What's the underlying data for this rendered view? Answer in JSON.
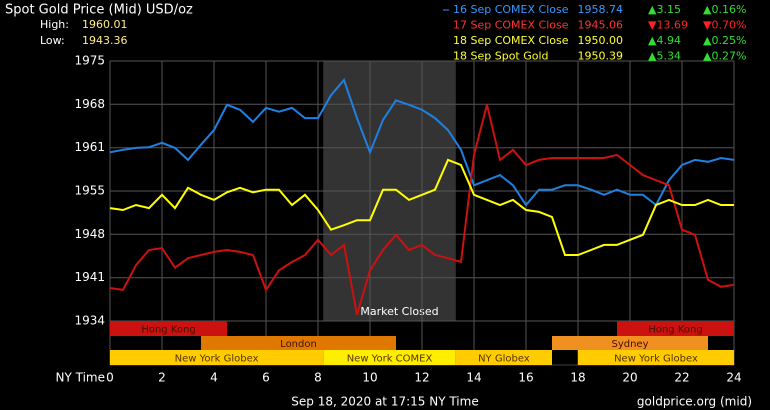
{
  "chart_data": {
    "type": "line",
    "title": "Spot Gold Price (Mid) USD/oz",
    "high_label": "High:",
    "high": "1960.01",
    "low_label": "Low:",
    "low": "1943.36",
    "x_label": "NY Time",
    "footer_date": "Sep 18, 2020 at 17:15 NY Time",
    "footer_source": "goldprice.org (mid)",
    "xlim": [
      0,
      24
    ],
    "xticks": [
      0,
      2,
      4,
      6,
      8,
      10,
      12,
      14,
      16,
      18,
      20,
      22,
      24
    ],
    "ylim": [
      1934,
      1975
    ],
    "yticks": [
      1975,
      {
        "value": 1968.17,
        "label": "1968"
      },
      {
        "value": 1961.33,
        "label": "1961"
      },
      {
        "value": 1954.5,
        "label": "1955"
      },
      {
        "value": 1947.67,
        "label": "1948"
      },
      {
        "value": 1940.83,
        "label": "1941"
      },
      1934
    ],
    "grid": true,
    "x": [
      0,
      0.5,
      1,
      1.5,
      2,
      2.5,
      3,
      3.5,
      4,
      4.5,
      5,
      5.5,
      6,
      6.5,
      7,
      7.5,
      8,
      8.5,
      9,
      9.5,
      10,
      10.5,
      11,
      11.5,
      12,
      12.5,
      13,
      13.5,
      14,
      14.5,
      15,
      15.5,
      16,
      16.5,
      17,
      17.5,
      18,
      18.5,
      19,
      19.5,
      20,
      20.5,
      21,
      21.5,
      22,
      22.5,
      23,
      23.5,
      24
    ],
    "series": [
      {
        "name": "16 Sep COMEX Close",
        "color": "#2080e0",
        "text_color": "#3399ff",
        "price": "1958.74",
        "change": "▲3.15",
        "change_pct": "▲0.16%",
        "up": true,
        "values": [
          1960.6,
          1961.0,
          1961.3,
          1961.4,
          1962.1,
          1961.3,
          1959.4,
          1961.8,
          1964.1,
          1968.1,
          1967.3,
          1965.4,
          1967.6,
          1967.0,
          1967.6,
          1966.0,
          1966.0,
          1969.6,
          1972.0,
          1966.0,
          1960.6,
          1965.7,
          1968.8,
          1968.1,
          1967.3,
          1966.0,
          1964.1,
          1961.0,
          1955.4,
          1956.2,
          1957.0,
          1955.4,
          1952.3,
          1954.7,
          1954.7,
          1955.4,
          1955.4,
          1954.7,
          1953.9,
          1954.7,
          1953.9,
          1953.9,
          1952.3,
          1956.2,
          1958.6,
          1959.4,
          1959.1,
          1959.7,
          1959.4
        ]
      },
      {
        "name": "17 Sep COMEX Close",
        "color": "#cc1111",
        "text_color": "#ff3333",
        "price": "1945.06",
        "change": "▼13.69",
        "change_pct": "▼0.70%",
        "up": false,
        "values": [
          1939.2,
          1938.9,
          1942.8,
          1945.2,
          1945.5,
          1942.4,
          1943.9,
          1944.4,
          1944.9,
          1945.2,
          1944.9,
          1944.4,
          1938.9,
          1942.0,
          1943.3,
          1944.4,
          1946.8,
          1944.4,
          1946.0,
          1935.0,
          1942.0,
          1945.2,
          1947.6,
          1945.2,
          1946.0,
          1944.4,
          1943.9,
          1943.3,
          1960.2,
          1968.1,
          1959.4,
          1961.0,
          1958.6,
          1959.4,
          1959.7,
          1959.7,
          1959.7,
          1959.7,
          1959.7,
          1960.2,
          1958.6,
          1957.0,
          1956.2,
          1955.4,
          1948.4,
          1947.6,
          1940.5,
          1939.4,
          1939.7
        ]
      },
      {
        "name": "18 Sep COMEX Close",
        "color": "#ffff00",
        "text_color": "#ffff33",
        "price": "1950.00",
        "change": "▲4.94",
        "change_pct": "▲0.25%",
        "up": true,
        "values": [
          1951.8,
          1951.5,
          1952.3,
          1951.8,
          1953.9,
          1951.8,
          1955.0,
          1953.9,
          1953.1,
          1954.3,
          1955.0,
          1954.3,
          1954.7,
          1954.7,
          1952.3,
          1953.9,
          1951.5,
          1948.4,
          1949.1,
          1949.9,
          1949.9,
          1954.7,
          1954.7,
          1953.1,
          1953.9,
          1954.7,
          1959.4,
          1958.6,
          1953.9,
          1953.1,
          1952.3,
          1953.1,
          1951.5,
          1951.2,
          1950.4,
          1944.4,
          1944.4,
          1945.2,
          1946.0,
          1946.0,
          1946.8,
          1947.6,
          1952.3,
          1953.1,
          1952.3,
          1952.3,
          1953.1,
          1952.3,
          1952.3
        ]
      }
    ],
    "extra_quotes": [
      {
        "name": "18 Sep Spot Gold",
        "text_color": "#ffff33",
        "price": "1950.39",
        "change": "▲5.34",
        "change_pct": "▲0.27%",
        "up": true
      }
    ],
    "market_closed": {
      "label": "Market Closed",
      "start": 8.2,
      "end": 13.3
    },
    "sessions": [
      {
        "label": "Hong Kong",
        "start": 0,
        "end": 4.5,
        "row": 0,
        "color": "#cc1111"
      },
      {
        "label": "Hong Kong",
        "start": 19.5,
        "end": 24,
        "row": 0,
        "color": "#cc1111"
      },
      {
        "label": "London",
        "start": 3.5,
        "end": 11,
        "row": 1,
        "color": "#e07800"
      },
      {
        "label": "Sydney",
        "start": 17,
        "end": 23,
        "row": 1,
        "color": "#f09020"
      },
      {
        "label": "New York Globex",
        "start": 0,
        "end": 8.2,
        "row": 2,
        "color": "#ffcc00"
      },
      {
        "label": "New York COMEX",
        "start": 8.2,
        "end": 13.3,
        "row": 2,
        "color": "#ffee00"
      },
      {
        "label": "NY Globex",
        "start": 13.3,
        "end": 17,
        "row": 2,
        "color": "#ffcc00"
      },
      {
        "label": "New York Globex",
        "start": 18,
        "end": 24,
        "row": 2,
        "color": "#ffcc00"
      }
    ]
  }
}
